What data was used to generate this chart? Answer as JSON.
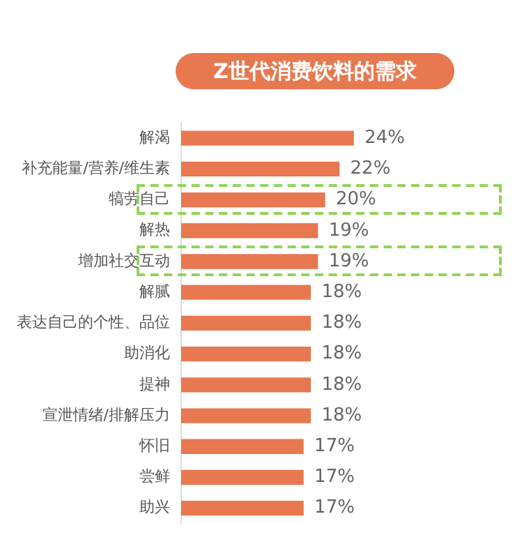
{
  "chart_data": {
    "type": "bar",
    "orientation": "horizontal",
    "title": "Z世代消费饮料的需求",
    "categories": [
      "解渴",
      "补充能量/营养/维生素",
      "犒劳自己",
      "解热",
      "增加社交互动",
      "解腻",
      "表达自己的个性、品位",
      "助消化",
      "提神",
      "宣泄情绪/排解压力",
      "怀旧",
      "尝鲜",
      "助兴"
    ],
    "values": [
      24,
      22,
      20,
      19,
      19,
      18,
      18,
      18,
      18,
      18,
      17,
      17,
      17
    ],
    "value_labels": [
      "24%",
      "22%",
      "20%",
      "19%",
      "19%",
      "18%",
      "18%",
      "18%",
      "18%",
      "18%",
      "17%",
      "17%",
      "17%"
    ],
    "color": "#e8784f",
    "grid": false,
    "legend": false
  }
}
